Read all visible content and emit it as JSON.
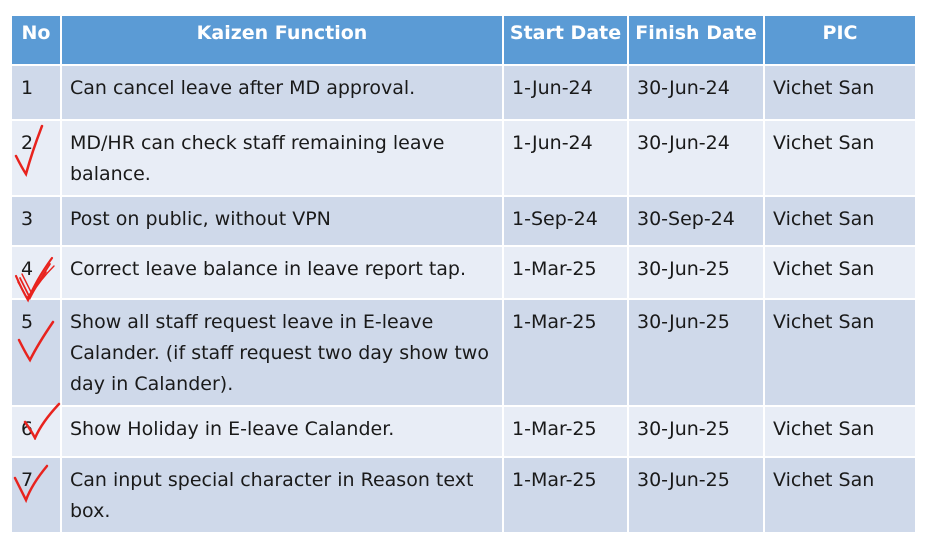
{
  "headers": {
    "no": "No",
    "function": "Kaizen Function",
    "start": "Start Date",
    "finish": "Finish Date",
    "pic": "PIC"
  },
  "rows": [
    {
      "no": "1",
      "function": "Can cancel leave after MD approval.",
      "start": "1-Jun-24",
      "finish": "30-Jun-24",
      "pic": "Vichet San",
      "checked": false
    },
    {
      "no": "2",
      "function": "MD/HR can check staff remaining leave balance.",
      "start": "1-Jun-24",
      "finish": "30-Jun-24",
      "pic": "Vichet San",
      "checked": true
    },
    {
      "no": "3",
      "function": "Post on public, without VPN",
      "start": "1-Sep-24",
      "finish": "30-Sep-24",
      "pic": "Vichet San",
      "checked": false
    },
    {
      "no": "4",
      "function": "Correct  leave balance in leave report tap.",
      "start": "1-Mar-25",
      "finish": "30-Jun-25",
      "pic": "Vichet San",
      "checked": true
    },
    {
      "no": "5",
      "function": "Show all staff request leave in E-leave Calander. (if staff request two day show two day in Calander).",
      "start": "1-Mar-25",
      "finish": "30-Jun-25",
      "pic": "Vichet San",
      "checked": true
    },
    {
      "no": "6",
      "function": "Show Holiday in E-leave Calander.",
      "start": "1-Mar-25",
      "finish": "30-Jun-25",
      "pic": "Vichet San",
      "checked": true
    },
    {
      "no": "7",
      "function": "Can input special character in Reason text box.",
      "start": "1-Mar-25",
      "finish": "30-Jun-25",
      "pic": "Vichet San",
      "checked": true
    }
  ],
  "colors": {
    "header_bg": "#5b9bd5",
    "row_dark": "#cfd9ea",
    "row_light": "#e8edf6",
    "check": "#e8231e"
  }
}
